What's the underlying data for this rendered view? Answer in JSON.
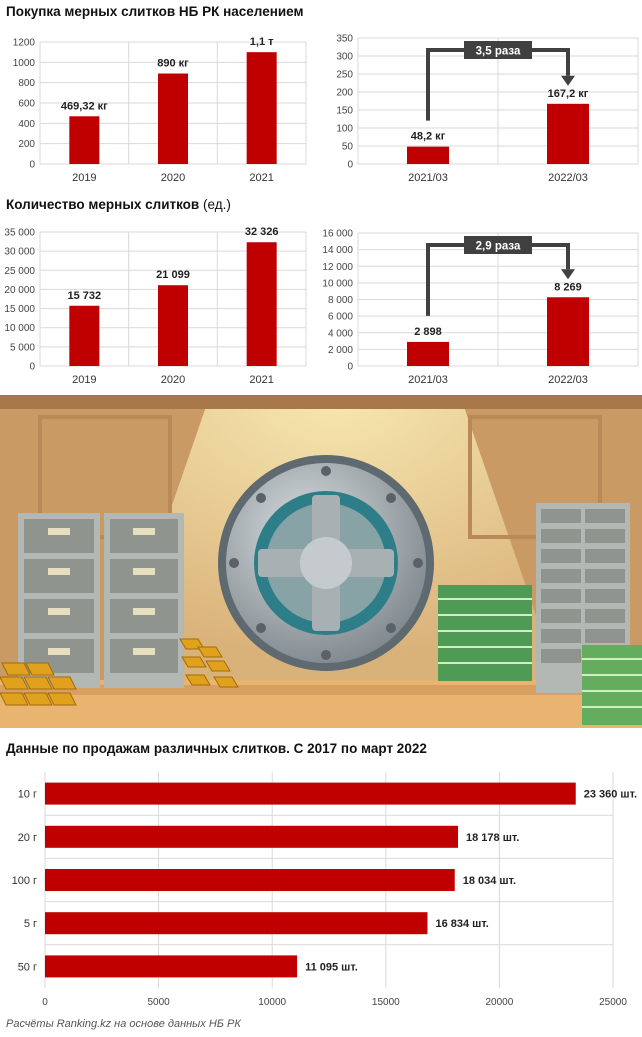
{
  "sections": {
    "title1": "Покупка мерных слитков НБ РК населением",
    "title2_bold": "Количество мерных слитков",
    "title2_light": " (ед.)",
    "title3": "Данные по продажам различных слитков. С 2017 по март 2022"
  },
  "colors": {
    "bar": "#c00000",
    "grid": "#d9d9d9",
    "arrow": "#404040"
  },
  "chart_data": [
    {
      "type": "bar",
      "categories": [
        "2019",
        "2020",
        "2021"
      ],
      "values": [
        469.32,
        890,
        1100
      ],
      "data_labels": [
        "469,32 кг",
        "890 кг",
        "1,1 т"
      ],
      "ylim": [
        0,
        1200
      ],
      "yticks": [
        "0",
        "200",
        "400",
        "600",
        "800",
        "1000",
        "1200"
      ]
    },
    {
      "type": "bar",
      "categories": [
        "2021/03",
        "2022/03"
      ],
      "values": [
        48.2,
        167.2
      ],
      "data_labels": [
        "48,2 кг",
        "167,2 кг"
      ],
      "ylim": [
        0,
        350
      ],
      "yticks": [
        "0",
        "50",
        "100",
        "150",
        "200",
        "250",
        "300",
        "350"
      ],
      "annotation": "3,5 раза"
    },
    {
      "type": "bar",
      "categories": [
        "2019",
        "2020",
        "2021"
      ],
      "values": [
        15732,
        21099,
        32326
      ],
      "data_labels": [
        "15 732",
        "21 099",
        "32 326"
      ],
      "ylim": [
        0,
        35000
      ],
      "yticks": [
        "0",
        "5 000",
        "10 000",
        "15 000",
        "20 000",
        "25 000",
        "30 000",
        "35 000"
      ]
    },
    {
      "type": "bar",
      "categories": [
        "2021/03",
        "2022/03"
      ],
      "values": [
        2898,
        8269
      ],
      "data_labels": [
        "2 898",
        "8 269"
      ],
      "ylim": [
        0,
        16000
      ],
      "yticks": [
        "0",
        "2 000",
        "4 000",
        "6 000",
        "8 000",
        "10 000",
        "12 000",
        "14 000",
        "16 000"
      ],
      "annotation": "2,9 раза"
    },
    {
      "type": "bar",
      "orientation": "horizontal",
      "categories": [
        "10 г",
        "20 г",
        "100 г",
        "5 г",
        "50 г"
      ],
      "values": [
        23360,
        18178,
        18034,
        16834,
        11095
      ],
      "data_labels": [
        "23 360 шт.",
        "18 178 шт.",
        "18 034 шт.",
        "16 834 шт.",
        "11 095 шт."
      ],
      "xlim": [
        0,
        25000
      ],
      "xticks": [
        "0",
        "5000",
        "10000",
        "15000",
        "20000",
        "25000"
      ]
    }
  ],
  "footnote": "Расчёты Ranking.kz на основе данных НБ РК"
}
